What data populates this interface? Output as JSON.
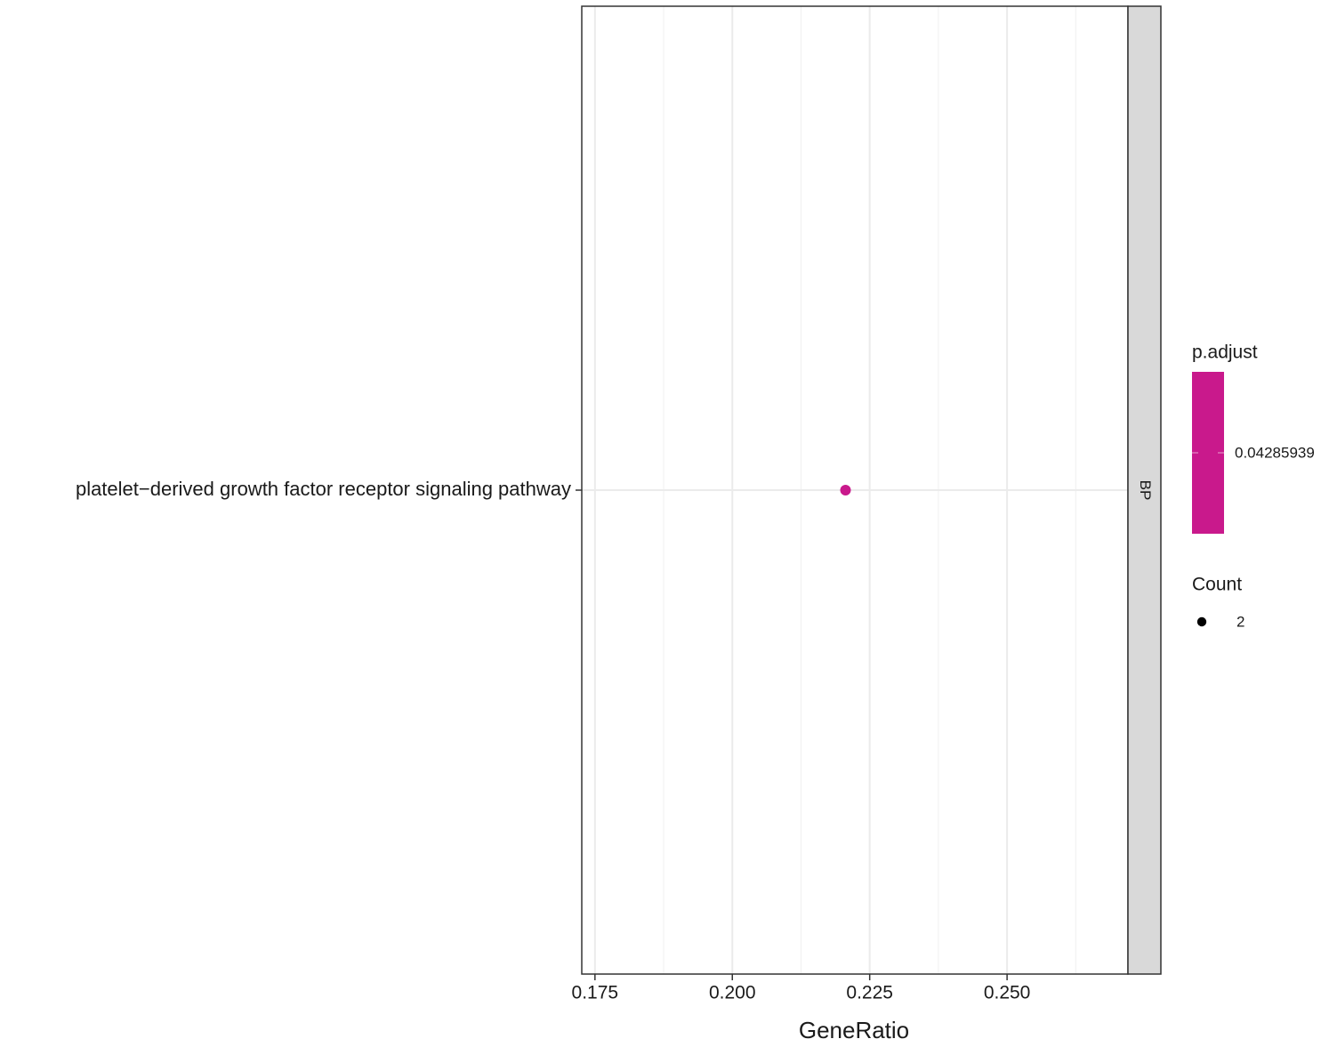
{
  "chart_data": {
    "type": "scatter",
    "categories": [
      "platelet−derived growth factor receptor signaling pathway"
    ],
    "x": [
      0.2206
    ],
    "p_adjust": [
      0.04285939
    ],
    "count": [
      2
    ],
    "color": "#c9198c",
    "facet": "BP",
    "xlabel": "GeneRatio",
    "xlim": [
      0.1726,
      0.272
    ],
    "xticks": [
      0.175,
      {
        "value": 0.2,
        "label": "0.200"
      },
      0.225,
      {
        "value": 0.25,
        "label": "0.250"
      }
    ],
    "grid": true,
    "legend": {
      "color_title": "p.adjust",
      "color_ticks": [
        0.04285939
      ],
      "size_title": "Count",
      "size_breaks": [
        2
      ]
    }
  }
}
